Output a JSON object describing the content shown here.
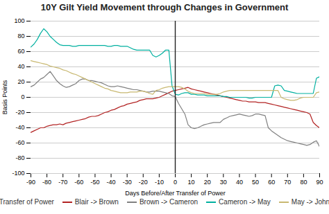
{
  "chart_data": {
    "type": "line",
    "title": "10Y Gilt Yield Movement through Changes in Government",
    "x_label": "Days Before/After Transfer of Power",
    "y_label": "Basis Points",
    "xlim": [
      -90,
      90
    ],
    "ylim": [
      -100,
      100
    ],
    "xticks": [
      -90,
      -80,
      -70,
      -60,
      -50,
      -40,
      -30,
      -20,
      -10,
      0,
      10,
      20,
      30,
      40,
      50,
      60,
      70,
      80,
      90
    ],
    "yticks": [
      -100,
      -80,
      -60,
      -40,
      -20,
      0,
      20,
      40,
      60,
      80,
      100
    ],
    "grid": "y",
    "legend": "bottom",
    "annotations": [
      {
        "type": "vline",
        "x": 0,
        "label": "Transfer of Power",
        "color": "#222222"
      }
    ],
    "x": [
      -90,
      -88,
      -86,
      -84,
      -82,
      -80,
      -78,
      -76,
      -74,
      -72,
      -70,
      -68,
      -66,
      -64,
      -62,
      -60,
      -58,
      -56,
      -54,
      -52,
      -50,
      -48,
      -46,
      -44,
      -42,
      -40,
      -38,
      -36,
      -34,
      -32,
      -30,
      -28,
      -26,
      -24,
      -22,
      -20,
      -18,
      -16,
      -14,
      -12,
      -10,
      -8,
      -6,
      -4,
      -2,
      0,
      2,
      4,
      6,
      8,
      10,
      12,
      14,
      16,
      18,
      20,
      22,
      24,
      26,
      28,
      30,
      32,
      34,
      36,
      38,
      40,
      42,
      44,
      46,
      48,
      50,
      52,
      54,
      56,
      58,
      60,
      62,
      64,
      66,
      68,
      70,
      72,
      74,
      76,
      78,
      80,
      82,
      84,
      86,
      88,
      90
    ],
    "series": [
      {
        "name": "Blair -> Brown",
        "color": "#b22222",
        "values": [
          -46,
          -44,
          -42,
          -40,
          -40,
          -38,
          -37,
          -36,
          -36,
          -35,
          -36,
          -34,
          -33,
          -32,
          -31,
          -30,
          -29,
          -28,
          -26,
          -25,
          -25,
          -24,
          -22,
          -20,
          -19,
          -17,
          -16,
          -14,
          -12,
          -11,
          -9,
          -8,
          -7,
          -6,
          -4,
          -3,
          -2,
          -2,
          -2,
          -1,
          0,
          2,
          4,
          6,
          8,
          9,
          10,
          11,
          12,
          13,
          11,
          10,
          9,
          8,
          7,
          6,
          5,
          4,
          3,
          2,
          1,
          0,
          -1,
          -2,
          -3,
          -4,
          -5,
          -5,
          -6,
          -6,
          -6,
          -7,
          -7,
          -7,
          -8,
          -9,
          -10,
          -11,
          -12,
          -13,
          -14,
          -15,
          -16,
          -17,
          -18,
          -19,
          -20,
          -22,
          -33,
          -37,
          -40
        ]
      },
      {
        "name": "Brown -> Cameron",
        "color": "#808080",
        "values": [
          14,
          16,
          20,
          24,
          26,
          30,
          34,
          28,
          22,
          18,
          15,
          13,
          14,
          16,
          18,
          22,
          24,
          24,
          22,
          22,
          21,
          20,
          19,
          17,
          15,
          14,
          14,
          15,
          14,
          13,
          12,
          11,
          10,
          10,
          9,
          8,
          7,
          7,
          8,
          8,
          8,
          7,
          6,
          5,
          2,
          1,
          -8,
          -15,
          -22,
          -36,
          -40,
          -41,
          -40,
          -38,
          -36,
          -35,
          -34,
          -33,
          -33,
          -33,
          -29,
          -27,
          -25,
          -24,
          -23,
          -22,
          -23,
          -24,
          -25,
          -24,
          -22,
          -22,
          -23,
          -24,
          -40,
          -44,
          -47,
          -50,
          -53,
          -55,
          -57,
          -58,
          -59,
          -60,
          -61,
          -62,
          -63,
          -62,
          -59,
          -57,
          -65
        ]
      },
      {
        "name": "Cameron -> May",
        "color": "#00b0a0",
        "values": [
          66,
          70,
          76,
          84,
          90,
          86,
          80,
          76,
          72,
          69,
          68,
          68,
          68,
          67,
          67,
          68,
          68,
          68,
          68,
          68,
          68,
          68,
          68,
          68,
          67,
          67,
          68,
          68,
          67,
          67,
          67,
          65,
          63,
          62,
          62,
          62,
          62,
          62,
          55,
          53,
          55,
          58,
          62,
          62,
          15,
          4,
          3,
          5,
          6,
          6,
          4,
          4,
          3,
          3,
          3,
          2,
          2,
          2,
          2,
          2,
          1,
          1,
          0,
          0,
          0,
          0,
          0,
          0,
          -1,
          -1,
          0,
          0,
          0,
          0,
          0,
          0,
          15,
          16,
          15,
          9,
          8,
          7,
          6,
          5,
          5,
          5,
          5,
          5,
          5,
          25,
          27
        ]
      },
      {
        "name": "May -> Johnson",
        "color": "#c8b870",
        "values": [
          48,
          47,
          46,
          45,
          44,
          43,
          41,
          40,
          39,
          38,
          36,
          35,
          33,
          31,
          30,
          28,
          26,
          24,
          22,
          20,
          18,
          16,
          14,
          12,
          11,
          9,
          8,
          7,
          6,
          6,
          6,
          7,
          7,
          7,
          8,
          8,
          7,
          5,
          4,
          9,
          10,
          12,
          13,
          14,
          14,
          14,
          14,
          13,
          11,
          8,
          6,
          5,
          5,
          5,
          5,
          4,
          4,
          4,
          4,
          5,
          7,
          8,
          9,
          9,
          9,
          9,
          9,
          9,
          9,
          9,
          9,
          9,
          9,
          9,
          9,
          9,
          9,
          9,
          0,
          -2,
          -3,
          -4,
          -4,
          -3,
          -1,
          0,
          0,
          0,
          0,
          6,
          7
        ]
      }
    ]
  }
}
